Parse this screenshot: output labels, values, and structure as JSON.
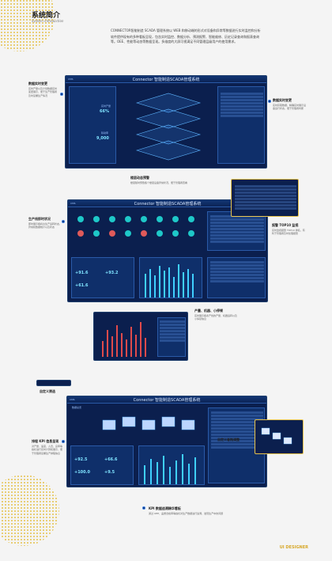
{
  "header": {
    "title_cn": "系统简介",
    "title_en": "System introduction"
  },
  "intro": {
    "p1": "CONNECTOR智能制造 SCADA 管理系统以 WEB 和移动端的形式对设备和异常等数据进行实时监控和分析",
    "p2": "软件提供现有的多种看板呈现，包含实时监控、数据分析、预测报警、智能维修、历史记录查询和报表查询等。OEE、性能等动态等数据呈现。多维度的大屏可视满足不同管理层级用户的使用需求。"
  },
  "app_title": "Connector 智能制造SCADA管理系统",
  "annotations": {
    "a1_title": "数据实时变更",
    "a1_desc": "实时产量以及计划数据实时变更展示，便于生产管理者及时掌握生产情况",
    "a2_title": "数据实时变更",
    "a2_desc": "实时获取数据，精确实时展示设备运行状态，便于管理者判断",
    "a3_title": "楼层动态预警",
    "a3_desc": "楼层随时预警各个楼层设备异常状况，便于管理者查看",
    "a4_title": "生产线即时状况",
    "a4_desc": "即时展示各机台生产运转状态、异常和数据统计以及状态",
    "a5_title": "报警 TOP10 监视",
    "a5_desc": "实时监视报警 TOP10 排名，有利于管理者及时处理报警",
    "a6_title": "产量、机器、小停顿",
    "a6_desc": "实时展示各条产线的产量、机器运转以及小停顿信息",
    "a7_title": "自定义筛选",
    "a8_title": "自定义者拖调整",
    "a9_title": "排程 KPI 信息呈现",
    "a9_desc": "对产量、速度、人员、良率等指标进行实时计算和展示，便于管理者掌握生产排程信息",
    "a10_title": "KPI 数据追溯精华看板",
    "a10_desc": "通过 OEE、品质合格率等指标对生产数据进行追溯，发现生产中的问题"
  },
  "screen1": {
    "kpi1_label": "实时产量",
    "kpi1": "66%",
    "kpi2_label": "稼动率",
    "kpi2": "9,000"
  },
  "screen2": {
    "kpi_a": "+91.6",
    "kpi_b": "+93.2",
    "kpi_c": "+61.6"
  },
  "screen3": {
    "breadcrumb": "数据总览",
    "kpi_a": "+92.5",
    "kpi_b": "+66.6",
    "kpi_c": "+100.0",
    "kpi_d": "+9.5"
  },
  "footer": {
    "brand": "UI DESIGNER"
  }
}
